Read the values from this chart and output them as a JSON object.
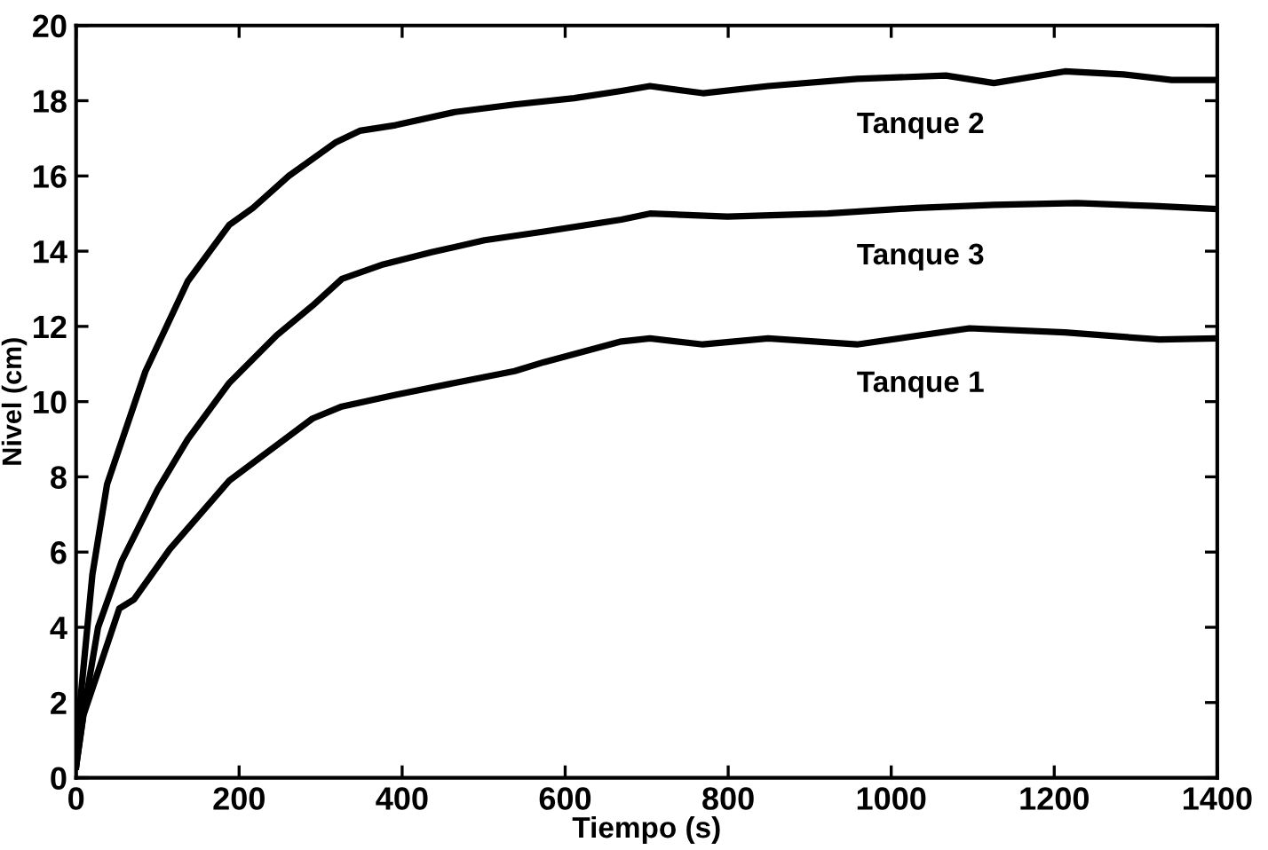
{
  "chart_data": {
    "type": "line",
    "xlabel": "Tiempo (s)",
    "ylabel": "Nivel (cm)",
    "xlim": [
      0,
      1400
    ],
    "ylim": [
      0,
      20
    ],
    "xticks": [
      0,
      200,
      400,
      600,
      800,
      1000,
      1200,
      1400
    ],
    "yticks": [
      0,
      2,
      4,
      6,
      8,
      10,
      12,
      14,
      16,
      18,
      20
    ],
    "grid": false,
    "legend": false,
    "marker": "none",
    "line_style": "solid",
    "series": [
      {
        "name": "Tanque 2",
        "color": "#000000",
        "x": [
          0,
          5,
          20,
          38,
          85,
          137,
          188,
          217,
          261,
          319,
          348,
          392,
          465,
          538,
          611,
          669,
          704,
          769,
          849,
          958,
          1067,
          1126,
          1213,
          1285,
          1344,
          1400
        ],
        "values": [
          0.3,
          2.0,
          5.4,
          7.8,
          10.8,
          13.2,
          14.7,
          15.15,
          16.0,
          16.9,
          17.2,
          17.35,
          17.7,
          17.9,
          18.07,
          18.26,
          18.39,
          18.2,
          18.39,
          18.58,
          18.67,
          18.47,
          18.78,
          18.7,
          18.55,
          18.55
        ]
      },
      {
        "name": "Tanque 3",
        "color": "#000000",
        "x": [
          0,
          9,
          27,
          56,
          100,
          137,
          188,
          246,
          290,
          326,
          377,
          436,
          501,
          574,
          669,
          704,
          799,
          922,
          1031,
          1126,
          1228,
          1322,
          1400
        ],
        "values": [
          0.3,
          1.7,
          4.0,
          5.76,
          7.66,
          9.0,
          10.5,
          11.76,
          12.55,
          13.26,
          13.65,
          13.97,
          14.29,
          14.52,
          14.84,
          15.0,
          14.92,
          15.0,
          15.15,
          15.23,
          15.28,
          15.2,
          15.12
        ]
      },
      {
        "name": "Tanque 1",
        "color": "#000000",
        "x": [
          0,
          9,
          53,
          71,
          115,
          188,
          246,
          290,
          326,
          392,
          465,
          538,
          574,
          669,
          704,
          769,
          849,
          958,
          1096,
          1213,
          1329,
          1400
        ],
        "values": [
          0.3,
          1.66,
          4.5,
          4.74,
          6.08,
          7.9,
          8.84,
          9.55,
          9.87,
          10.18,
          10.5,
          10.81,
          11.05,
          11.6,
          11.68,
          11.52,
          11.68,
          11.52,
          11.95,
          11.84,
          11.65,
          11.68
        ]
      }
    ]
  }
}
